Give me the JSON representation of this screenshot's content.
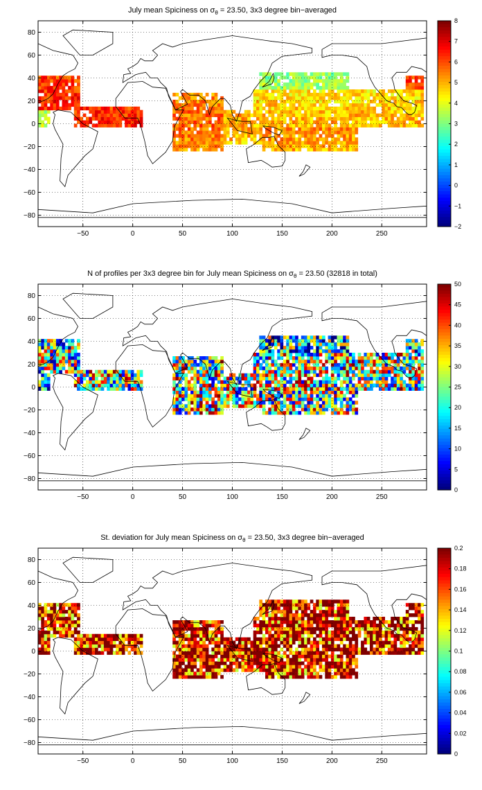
{
  "chart_data": [
    {
      "type": "heatmap",
      "title": "July mean Spiciness on σ",
      "title_sub": "θ",
      "title_rest": " = 23.50, 3x3 degree bin−averaged",
      "variable": "mean",
      "x_ticks": [
        -50,
        0,
        50,
        100,
        150,
        200,
        250
      ],
      "y_ticks": [
        80,
        60,
        40,
        20,
        0,
        -20,
        -40,
        -60,
        -80
      ],
      "xlim": [
        -95,
        295
      ],
      "ylim": [
        -90,
        90
      ],
      "grid": true,
      "colorbar": {
        "min": -2,
        "max": 8,
        "ticks": [
          8,
          7,
          6,
          5,
          4,
          3,
          2,
          1,
          0,
          -1,
          -2
        ],
        "colormap": "jet"
      }
    },
    {
      "type": "heatmap",
      "title": "N of profiles per 3x3 degree bin for July mean Spiciness on σ",
      "title_sub": "θ",
      "title_rest": " = 23.50 (32818 in total)",
      "variable": "count",
      "x_ticks": [
        -50,
        0,
        50,
        100,
        150,
        200,
        250
      ],
      "y_ticks": [
        80,
        60,
        40,
        20,
        0,
        -20,
        -40,
        -60,
        -80
      ],
      "xlim": [
        -95,
        295
      ],
      "ylim": [
        -90,
        90
      ],
      "grid": true,
      "colorbar": {
        "min": 0,
        "max": 50,
        "ticks": [
          50,
          45,
          40,
          35,
          30,
          25,
          20,
          15,
          10,
          5,
          0
        ],
        "colormap": "jet"
      }
    },
    {
      "type": "heatmap",
      "title": "St. deviation for July mean Spiciness on σ",
      "title_sub": "θ",
      "title_rest": " = 23.50, 3x3 degree bin−averaged",
      "variable": "std",
      "x_ticks": [
        -50,
        0,
        50,
        100,
        150,
        200,
        250
      ],
      "y_ticks": [
        80,
        60,
        40,
        20,
        0,
        -20,
        -40,
        -60,
        -80
      ],
      "xlim": [
        -95,
        295
      ],
      "ylim": [
        -90,
        90
      ],
      "grid": true,
      "colorbar": {
        "min": 0,
        "max": 0.2,
        "ticks": [
          0.2,
          0.18,
          0.16,
          0.14,
          0.12,
          0.1,
          0.08,
          0.06,
          0.04,
          0.02,
          0
        ],
        "colormap": "jet"
      }
    }
  ]
}
